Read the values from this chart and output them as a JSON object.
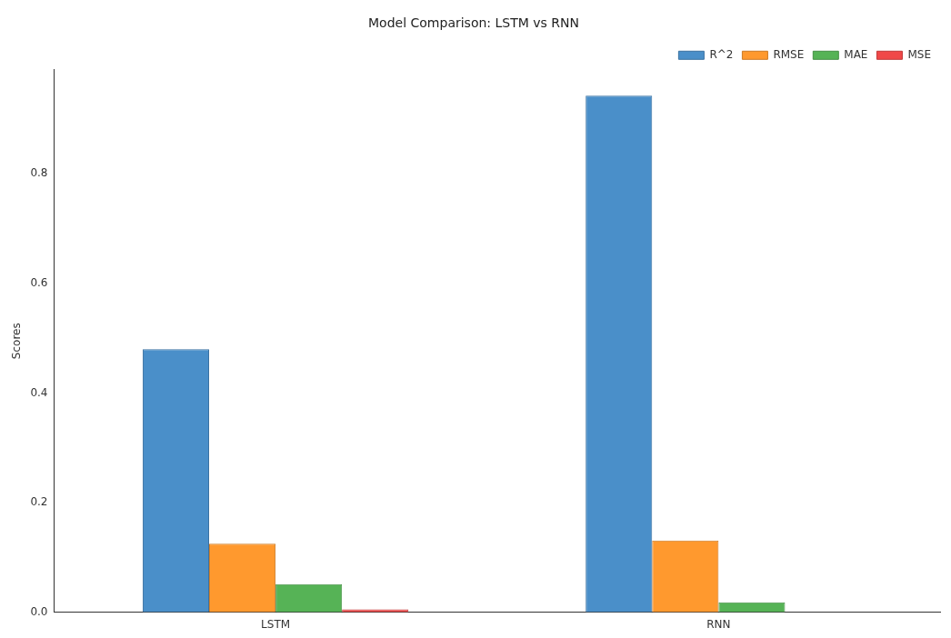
{
  "chart_data": {
    "type": "bar",
    "title": "Model Comparison: LSTM vs RNN",
    "ylabel": "Scores",
    "categories": [
      "LSTM",
      "RNN"
    ],
    "series": [
      {
        "name": "R^2",
        "color": "#4a8fc9",
        "values": [
          0.48,
          0.943
        ]
      },
      {
        "name": "RMSE",
        "color": "#ff992e",
        "values": [
          0.125,
          0.131
        ]
      },
      {
        "name": "MAE",
        "color": "#56b356",
        "values": [
          0.051,
          0.018
        ]
      },
      {
        "name": "MSE",
        "color": "#f04848",
        "values": [
          0.005,
          0
        ]
      }
    ],
    "ylim": [
      0,
      0.99
    ],
    "yticks": [
      {
        "value": 0,
        "label": "0.0"
      },
      {
        "value": 0.2,
        "label": "0.2"
      },
      {
        "value": 0.4,
        "label": "0.4"
      },
      {
        "value": 0.6,
        "label": "0.6"
      },
      {
        "value": 0.8,
        "label": "0.8"
      }
    ],
    "grid": false,
    "legend": "top right"
  }
}
